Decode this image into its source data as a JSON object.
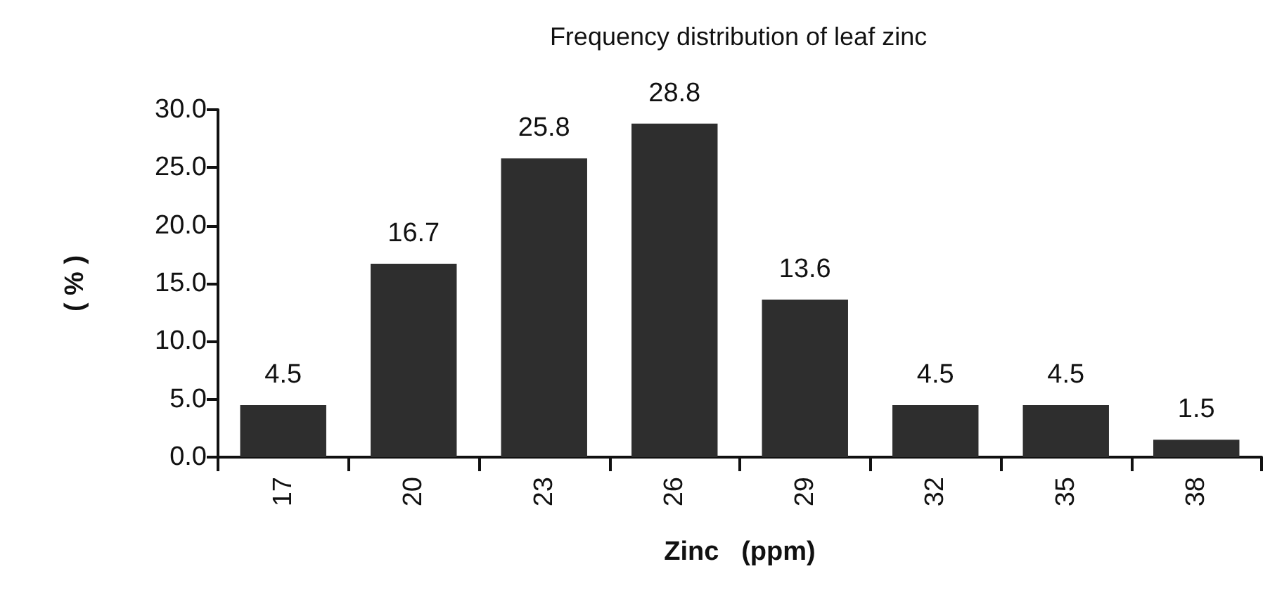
{
  "chart_data": {
    "type": "bar",
    "title": "Frequency distribution of leaf zinc",
    "xlabel": "Zinc   (ppm)",
    "ylabel": "( % )",
    "categories": [
      "17",
      "20",
      "23",
      "26",
      "29",
      "32",
      "35",
      "38"
    ],
    "values": [
      4.5,
      16.7,
      25.8,
      28.8,
      13.6,
      4.5,
      4.5,
      1.5
    ],
    "color": "#2e2e2e",
    "ylim": [
      0,
      30
    ],
    "yticks": [
      {
        "value": 0,
        "label": "0.0"
      },
      {
        "value": 5,
        "label": "5.0"
      },
      {
        "value": 10,
        "label": "10.0"
      },
      {
        "value": 15,
        "label": "15.0"
      },
      {
        "value": 20,
        "label": "20.0"
      },
      {
        "value": 25,
        "label": "25.0"
      },
      {
        "value": 30,
        "label": "30.0"
      }
    ],
    "data_labels": true,
    "grid": false
  }
}
